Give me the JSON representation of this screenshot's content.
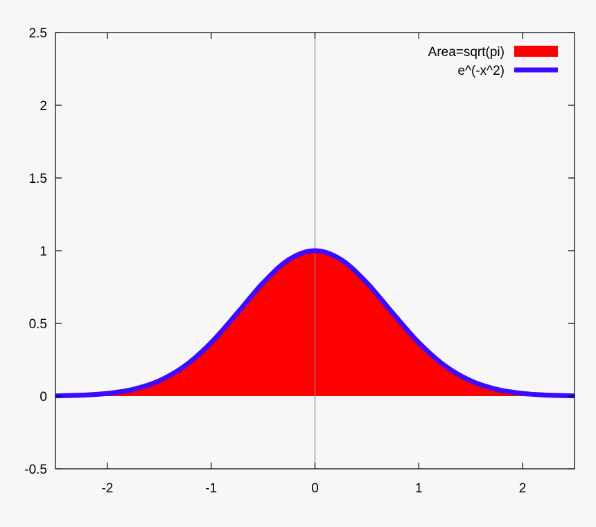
{
  "chart_data": {
    "type": "area",
    "title": "",
    "xlabel": "",
    "ylabel": "",
    "xlim": [
      -2.5,
      2.5
    ],
    "ylim": [
      -0.5,
      2.5
    ],
    "x_ticks": [
      -2,
      -1,
      0,
      1,
      2
    ],
    "y_ticks": [
      -0.5,
      0,
      0.5,
      1,
      1.5,
      2,
      2.5
    ],
    "x_tick_labels": [
      "-2",
      "-1",
      "0",
      "1",
      "2"
    ],
    "y_tick_labels": [
      "-0.5",
      "0",
      "0.5",
      "1",
      "1.5",
      "2",
      "2.5"
    ],
    "grid": false,
    "zero_axis_x": true,
    "legend_position": "top-right",
    "x": [
      -2.5,
      -2.25,
      -2.0,
      -1.75,
      -1.5,
      -1.25,
      -1.0,
      -0.75,
      -0.5,
      -0.25,
      0.0,
      0.25,
      0.5,
      0.75,
      1.0,
      1.25,
      1.5,
      1.75,
      2.0,
      2.25,
      2.5
    ],
    "series": [
      {
        "name": "Area=sqrt(pi)",
        "kind": "area",
        "color": "#ff0000",
        "values": [
          0.0019,
          0.0063,
          0.0183,
          0.0468,
          0.1054,
          0.2096,
          0.3679,
          0.5698,
          0.7788,
          0.9394,
          1.0,
          0.9394,
          0.7788,
          0.5698,
          0.3679,
          0.2096,
          0.1054,
          0.0468,
          0.0183,
          0.0063,
          0.0019
        ]
      },
      {
        "name": "e^(-x^2)",
        "kind": "line",
        "color": "#3b0aff",
        "values": [
          0.0019,
          0.0063,
          0.0183,
          0.0468,
          0.1054,
          0.2096,
          0.3679,
          0.5698,
          0.7788,
          0.9394,
          1.0,
          0.9394,
          0.7788,
          0.5698,
          0.3679,
          0.2096,
          0.1054,
          0.0468,
          0.0183,
          0.0063,
          0.0019
        ]
      }
    ]
  }
}
